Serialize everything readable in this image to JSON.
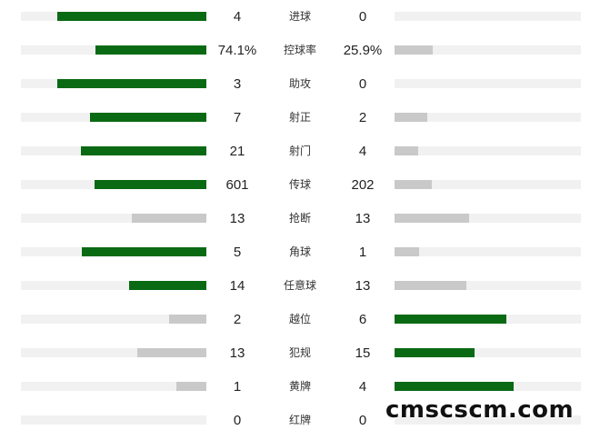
{
  "colors": {
    "leading_bar": "#0a6a14",
    "trailing_bar": "#c9c9c9",
    "track": "#f1f1f1"
  },
  "stats": [
    {
      "label": "进球",
      "home": "4",
      "away": "0",
      "home_share": 1.0,
      "away_share": 0.0,
      "leader": "home"
    },
    {
      "label": "控球率",
      "home": "74.1%",
      "away": "25.9%",
      "home_share": 0.741,
      "away_share": 0.259,
      "leader": "home"
    },
    {
      "label": "助攻",
      "home": "3",
      "away": "0",
      "home_share": 1.0,
      "away_share": 0.0,
      "leader": "home"
    },
    {
      "label": "射正",
      "home": "7",
      "away": "2",
      "home_share": 0.778,
      "away_share": 0.222,
      "leader": "home"
    },
    {
      "label": "射门",
      "home": "21",
      "away": "4",
      "home_share": 0.84,
      "away_share": 0.16,
      "leader": "home"
    },
    {
      "label": "传球",
      "home": "601",
      "away": "202",
      "home_share": 0.748,
      "away_share": 0.252,
      "leader": "home"
    },
    {
      "label": "抢断",
      "home": "13",
      "away": "13",
      "home_share": 0.5,
      "away_share": 0.5,
      "leader": "none"
    },
    {
      "label": "角球",
      "home": "5",
      "away": "1",
      "home_share": 0.833,
      "away_share": 0.167,
      "leader": "home"
    },
    {
      "label": "任意球",
      "home": "14",
      "away": "13",
      "home_share": 0.519,
      "away_share": 0.481,
      "leader": "home"
    },
    {
      "label": "越位",
      "home": "2",
      "away": "6",
      "home_share": 0.25,
      "away_share": 0.75,
      "leader": "away"
    },
    {
      "label": "犯规",
      "home": "13",
      "away": "15",
      "home_share": 0.464,
      "away_share": 0.536,
      "leader": "away"
    },
    {
      "label": "黄牌",
      "home": "1",
      "away": "4",
      "home_share": 0.2,
      "away_share": 0.8,
      "leader": "away"
    },
    {
      "label": "红牌",
      "home": "0",
      "away": "0",
      "home_share": 0.0,
      "away_share": 0.0,
      "leader": "none"
    }
  ],
  "watermark": "cmscscm.com"
}
